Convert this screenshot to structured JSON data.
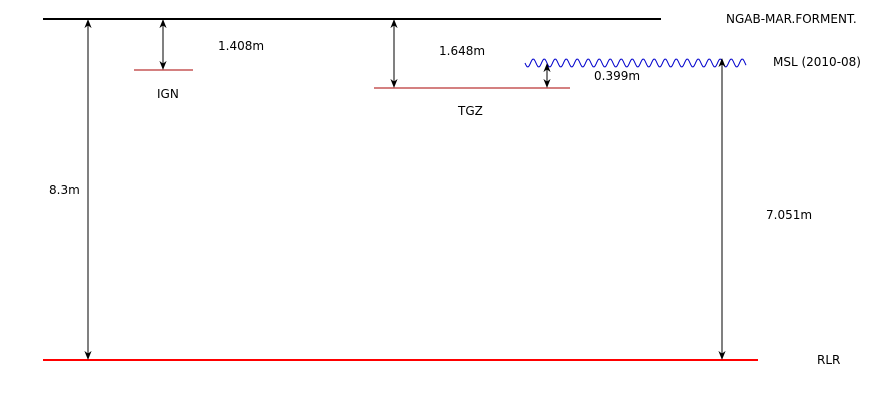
{
  "labels": {
    "ngab": "NGAB-MAR.FORMENT.",
    "msl": "MSL (2010-08)",
    "rlr": "RLR",
    "ign": "IGN",
    "tgz": "TGZ"
  },
  "measurements": {
    "ngab_to_ign": "1.408m",
    "ngab_to_tgz": "1.648m",
    "tgz_to_msl": "0.399m",
    "ngab_to_rlr": "8.3m",
    "msl_to_rlr": "7.051m"
  },
  "colors": {
    "ngab_line": "#000000",
    "rlr_line": "#ff0000",
    "benchmark_line": "#aa0000",
    "msl_wave": "#0000cc",
    "arrow": "#000000"
  }
}
